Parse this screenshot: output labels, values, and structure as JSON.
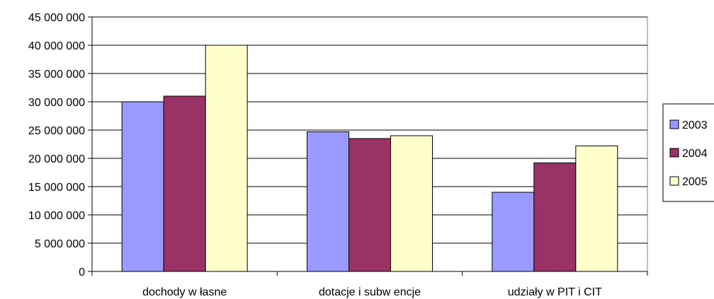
{
  "chart_data": {
    "type": "bar",
    "categories": [
      "dochody w łasne",
      "dotacje i subw encje",
      "udziały w PIT i CIT"
    ],
    "series": [
      {
        "name": "2003",
        "values": [
          30000000,
          24700000,
          14000000
        ],
        "color": "#9999ff"
      },
      {
        "name": "2004",
        "values": [
          31000000,
          23500000,
          19200000
        ],
        "color": "#993366"
      },
      {
        "name": "2005",
        "values": [
          40000000,
          24000000,
          22200000
        ],
        "color": "#ffffcc"
      }
    ],
    "yticks": [
      "0",
      "5 000 000",
      "10 000 000",
      "15 000 000",
      "20 000 000",
      "25 000 000",
      "30 000 000",
      "35 000 000",
      "40 000 000",
      "45 000 000"
    ],
    "ylim": [
      0,
      45000000
    ],
    "grid": true,
    "legend_position": "right"
  }
}
